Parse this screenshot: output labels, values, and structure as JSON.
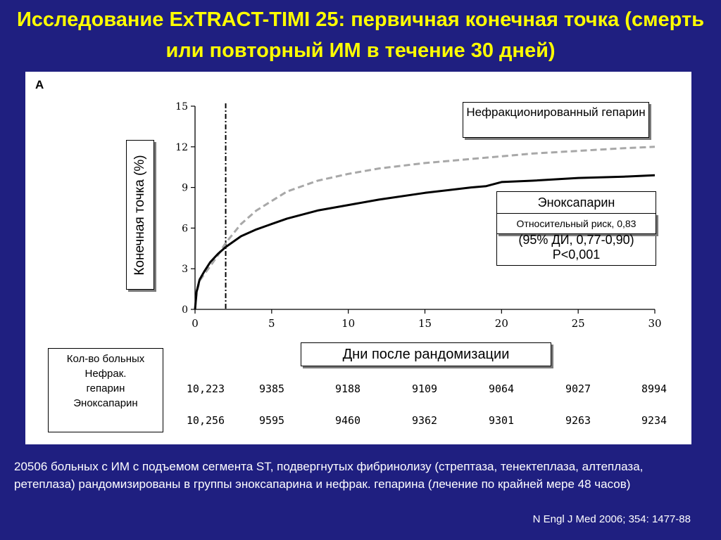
{
  "title": "Исследование ExTRACT-TIMI 25: первичная конечная точка (смерть или повторный ИМ в течение 30 дней)",
  "panel_letter": "A",
  "y_axis_label": "Конечная точка (%)",
  "x_axis_label": "Дни после рандомизации",
  "annotations": {
    "ufh": "Нефракционированный гепарин",
    "enox": "Эноксапарин",
    "rr": "Относительный риск, 0,83",
    "ci": "(95% ДИ, 0,77-0,90)",
    "p": "P<0,001"
  },
  "at_risk": {
    "header": "Кол-во больных",
    "ufh_label": "Нефрак. гепарин",
    "enox_label": "Эноксапарин",
    "ufh_values": [
      "10,223",
      "9385",
      "9188",
      "9109",
      "9064",
      "9027",
      "8994"
    ],
    "enox_values": [
      "10,256",
      "9595",
      "9460",
      "9362",
      "9301",
      "9263",
      "9234"
    ]
  },
  "footnote": "20506 больных с ИМ с подъемом сегмента ST, подвергнутых фибринолизу (стрептаза, тенектеплаза, алтеплаза, ретеплаза) рандомизированы в группы эноксапарина и нефрак. гепарина (лечение по крайней мере 48 часов)",
  "citation": "N Engl J Med 2006; 354: 1477-88",
  "colors": {
    "background": "#1f1f80",
    "title": "#ffff00",
    "ufh_line": "#a8a8a8",
    "enox_line": "#000000"
  },
  "chart_data": {
    "type": "line",
    "xlim": [
      0,
      30
    ],
    "ylim": [
      0,
      15
    ],
    "x_ticks": [
      0,
      5,
      10,
      15,
      20,
      25,
      30
    ],
    "y_ticks": [
      0,
      3,
      6,
      9,
      12,
      15
    ],
    "vertical_marker_x": 2,
    "series": [
      {
        "name": "Нефракционированный гепарин",
        "style": "dashed",
        "x": [
          0,
          0.1,
          0.3,
          0.6,
          1,
          1.5,
          2,
          3,
          4,
          5,
          6,
          8,
          10,
          12,
          15,
          18,
          20,
          22,
          25,
          28,
          30
        ],
        "y": [
          0,
          1.2,
          2.1,
          2.6,
          3.2,
          4.0,
          4.9,
          6.3,
          7.3,
          8.0,
          8.7,
          9.5,
          10.0,
          10.4,
          10.8,
          11.1,
          11.3,
          11.5,
          11.7,
          11.9,
          12.0
        ]
      },
      {
        "name": "Эноксапарин",
        "style": "solid",
        "x": [
          0,
          0.1,
          0.3,
          0.6,
          1,
          1.5,
          2,
          3,
          4,
          5,
          6,
          8,
          10,
          12,
          15,
          18,
          19,
          20,
          22,
          25,
          28,
          30
        ],
        "y": [
          0,
          1.3,
          2.2,
          2.8,
          3.5,
          4.1,
          4.6,
          5.4,
          5.9,
          6.3,
          6.7,
          7.3,
          7.7,
          8.1,
          8.6,
          9.0,
          9.1,
          9.4,
          9.5,
          9.7,
          9.8,
          9.9
        ]
      }
    ]
  }
}
